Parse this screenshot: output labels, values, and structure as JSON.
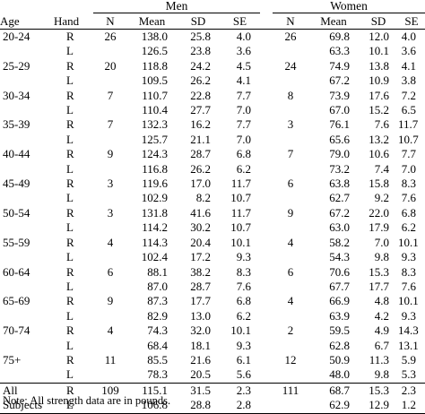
{
  "group_headers": {
    "men": "Men",
    "women": "Women"
  },
  "column_headers": {
    "age": "Age",
    "hand": "Hand",
    "n": "N",
    "mean": "Mean",
    "sd": "SD",
    "se": "SE"
  },
  "rows": [
    {
      "age": "20-24",
      "hand": "R",
      "men": {
        "n": "26",
        "mean": "138.0",
        "sd": "25.8",
        "se": "4.0"
      },
      "women": {
        "n": "26",
        "mean": "69.8",
        "sd": "12.0",
        "se": "4.0"
      }
    },
    {
      "age": "",
      "hand": "L",
      "men": {
        "n": "",
        "mean": "126.5",
        "sd": "23.8",
        "se": "3.6"
      },
      "women": {
        "n": "",
        "mean": "63.3",
        "sd": "10.1",
        "se": "3.6"
      }
    },
    {
      "age": "25-29",
      "hand": "R",
      "men": {
        "n": "20",
        "mean": "118.8",
        "sd": "24.2",
        "se": "4.5"
      },
      "women": {
        "n": "24",
        "mean": "74.9",
        "sd": "13.8",
        "se": "4.1"
      }
    },
    {
      "age": "",
      "hand": "L",
      "men": {
        "n": "",
        "mean": "109.5",
        "sd": "26.2",
        "se": "4.1"
      },
      "women": {
        "n": "",
        "mean": "67.2",
        "sd": "10.9",
        "se": "3.8"
      }
    },
    {
      "age": "30-34",
      "hand": "R",
      "men": {
        "n": "7",
        "mean": "110.7",
        "sd": "22.8",
        "se": "7.7"
      },
      "women": {
        "n": "8",
        "mean": "73.9",
        "sd": "17.6",
        "se": "7.2"
      }
    },
    {
      "age": "",
      "hand": "L",
      "men": {
        "n": "",
        "mean": "110.4",
        "sd": "27.7",
        "se": "7.0"
      },
      "women": {
        "n": "",
        "mean": "67.0",
        "sd": "15.2",
        "se": "6.5"
      }
    },
    {
      "age": "35-39",
      "hand": "R",
      "men": {
        "n": "7",
        "mean": "132.3",
        "sd": "16.2",
        "se": "7.7"
      },
      "women": {
        "n": "3",
        "mean": "76.1",
        "sd": "7.6",
        "se": "11.7"
      }
    },
    {
      "age": "",
      "hand": "L",
      "men": {
        "n": "",
        "mean": "125.7",
        "sd": "21.1",
        "se": "7.0"
      },
      "women": {
        "n": "",
        "mean": "65.6",
        "sd": "13.2",
        "se": "10.7"
      }
    },
    {
      "age": "40-44",
      "hand": "R",
      "men": {
        "n": "9",
        "mean": "124.3",
        "sd": "28.7",
        "se": "6.8"
      },
      "women": {
        "n": "7",
        "mean": "79.0",
        "sd": "10.6",
        "se": "7.7"
      }
    },
    {
      "age": "",
      "hand": "L",
      "men": {
        "n": "",
        "mean": "116.8",
        "sd": "26.2",
        "se": "6.2"
      },
      "women": {
        "n": "",
        "mean": "73.2",
        "sd": "7.4",
        "se": "7.0"
      }
    },
    {
      "age": "45-49",
      "hand": "R",
      "men": {
        "n": "3",
        "mean": "119.6",
        "sd": "17.0",
        "se": "11.7"
      },
      "women": {
        "n": "6",
        "mean": "63.8",
        "sd": "15.8",
        "se": "8.3"
      }
    },
    {
      "age": "",
      "hand": "L",
      "men": {
        "n": "",
        "mean": "102.9",
        "sd": "8.2",
        "se": "10.7"
      },
      "women": {
        "n": "",
        "mean": "62.7",
        "sd": "9.2",
        "se": "7.6"
      }
    },
    {
      "age": "50-54",
      "hand": "R",
      "men": {
        "n": "3",
        "mean": "131.8",
        "sd": "41.6",
        "se": "11.7"
      },
      "women": {
        "n": "9",
        "mean": "67.2",
        "sd": "22.0",
        "se": "6.8"
      }
    },
    {
      "age": "",
      "hand": "L",
      "men": {
        "n": "",
        "mean": "114.2",
        "sd": "30.2",
        "se": "10.7"
      },
      "women": {
        "n": "",
        "mean": "63.0",
        "sd": "17.9",
        "se": "6.2"
      }
    },
    {
      "age": "55-59",
      "hand": "R",
      "men": {
        "n": "4",
        "mean": "114.3",
        "sd": "20.4",
        "se": "10.1"
      },
      "women": {
        "n": "4",
        "mean": "58.2",
        "sd": "7.0",
        "se": "10.1"
      }
    },
    {
      "age": "",
      "hand": "L",
      "men": {
        "n": "",
        "mean": "102.4",
        "sd": "17.2",
        "se": "9.3"
      },
      "women": {
        "n": "",
        "mean": "54.3",
        "sd": "9.8",
        "se": "9.3"
      }
    },
    {
      "age": "60-64",
      "hand": "R",
      "men": {
        "n": "6",
        "mean": "88.1",
        "sd": "38.2",
        "se": "8.3"
      },
      "women": {
        "n": "6",
        "mean": "70.6",
        "sd": "15.3",
        "se": "8.3"
      }
    },
    {
      "age": "",
      "hand": "L",
      "men": {
        "n": "",
        "mean": "87.0",
        "sd": "28.7",
        "se": "7.6"
      },
      "women": {
        "n": "",
        "mean": "67.7",
        "sd": "17.7",
        "se": "7.6"
      }
    },
    {
      "age": "65-69",
      "hand": "R",
      "men": {
        "n": "9",
        "mean": "87.3",
        "sd": "17.7",
        "se": "6.8"
      },
      "women": {
        "n": "4",
        "mean": "66.9",
        "sd": "4.8",
        "se": "10.1"
      }
    },
    {
      "age": "",
      "hand": "L",
      "men": {
        "n": "",
        "mean": "82.9",
        "sd": "13.0",
        "se": "6.2"
      },
      "women": {
        "n": "",
        "mean": "63.9",
        "sd": "4.2",
        "se": "9.3"
      }
    },
    {
      "age": "70-74",
      "hand": "R",
      "men": {
        "n": "4",
        "mean": "74.3",
        "sd": "32.0",
        "se": "10.1"
      },
      "women": {
        "n": "2",
        "mean": "59.5",
        "sd": "4.9",
        "se": "14.3"
      }
    },
    {
      "age": "",
      "hand": "L",
      "men": {
        "n": "",
        "mean": "68.4",
        "sd": "18.1",
        "se": "9.3"
      },
      "women": {
        "n": "",
        "mean": "62.8",
        "sd": "6.7",
        "se": "13.1"
      }
    },
    {
      "age": "75+",
      "hand": "R",
      "men": {
        "n": "11",
        "mean": "85.5",
        "sd": "21.6",
        "se": "6.1"
      },
      "women": {
        "n": "12",
        "mean": "50.9",
        "sd": "11.3",
        "se": "5.9"
      }
    },
    {
      "age": "",
      "hand": "L",
      "men": {
        "n": "",
        "mean": "78.3",
        "sd": "20.5",
        "se": "5.6"
      },
      "women": {
        "n": "",
        "mean": "48.0",
        "sd": "9.8",
        "se": "5.3"
      }
    },
    {
      "age": "All",
      "hand": "R",
      "men": {
        "n": "109",
        "mean": "115.1",
        "sd": "31.5",
        "se": "2.3"
      },
      "women": {
        "n": "111",
        "mean": "68.7",
        "sd": "15.3",
        "se": "2.3"
      }
    },
    {
      "age": "Subjects",
      "hand": "L",
      "men": {
        "n": "",
        "mean": "106.8",
        "sd": "28.8",
        "se": "2.8"
      },
      "women": {
        "n": "",
        "mean": "62.9",
        "sd": "12.9",
        "se": "1.2"
      }
    }
  ],
  "note": "Note: All strength data are in pounds."
}
